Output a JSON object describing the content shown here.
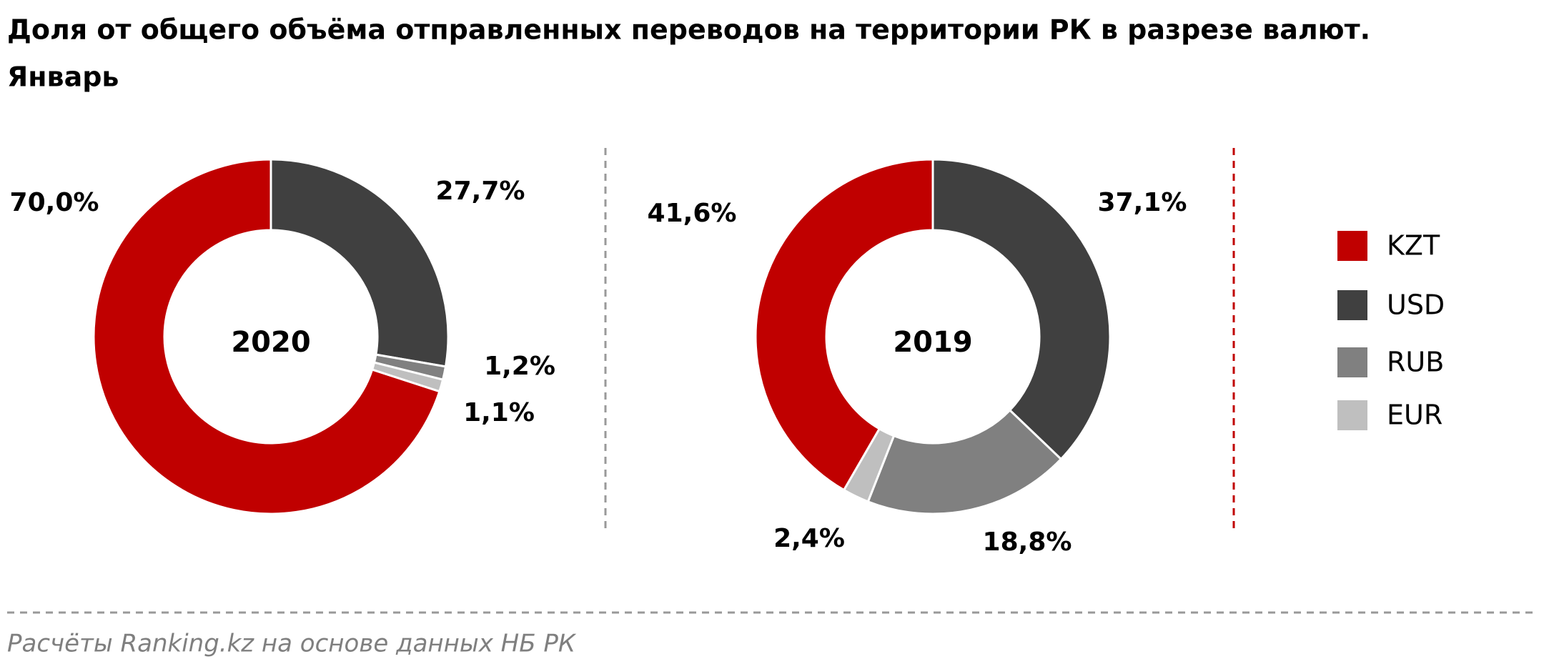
{
  "title_lines": [
    "Доля от общего объёма отправленных переводов на территории РК в разрезе валют.",
    "Январь"
  ],
  "source": "Расчёты Ranking.kz на основе данных  НБ РК",
  "legend_position": "right",
  "chart_data": [
    {
      "type": "pie",
      "donut": true,
      "center_label": "2020",
      "categories": [
        "KZT",
        "USD",
        "RUB",
        "EUR"
      ],
      "values": [
        70.0,
        27.7,
        1.2,
        1.1
      ],
      "value_labels": [
        "70,0%",
        "27,7%",
        "1,2%",
        "1,1%"
      ],
      "colors": [
        "#c00000",
        "#404040",
        "#808080",
        "#bfbfbf"
      ]
    },
    {
      "type": "pie",
      "donut": true,
      "center_label": "2019",
      "categories": [
        "KZT",
        "USD",
        "RUB",
        "EUR"
      ],
      "values": [
        41.6,
        37.1,
        18.8,
        2.4
      ],
      "value_labels": [
        "41,6%",
        "37,1%",
        "18,8%",
        "2,4%"
      ],
      "colors": [
        "#c00000",
        "#404040",
        "#808080",
        "#bfbfbf"
      ]
    }
  ]
}
